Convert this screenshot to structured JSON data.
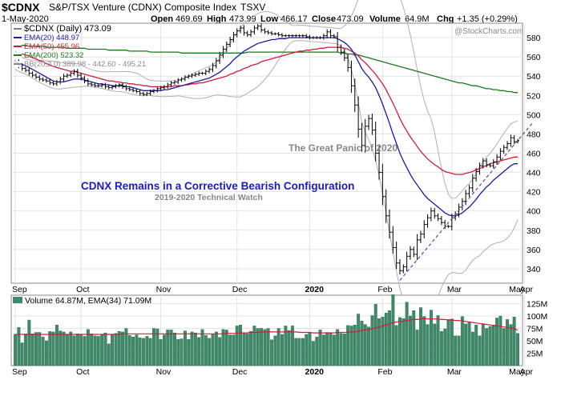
{
  "header": {
    "symbol": "$CDNX",
    "name": "S&P/TSX Venture (CDNX) Composite Index",
    "exchange": "TSXV",
    "date": "1-May-2020",
    "open_label": "Open",
    "open": "469.69",
    "high_label": "High",
    "high": "473.99",
    "low_label": "Low",
    "low": "466.17",
    "close_label": "Close",
    "close": "473.09",
    "volume_label": "Volume",
    "volume": "64.9M",
    "chg_label": "Chg",
    "chg": "+1.35 (+0.29%)",
    "watermark": "@StockCharts.com"
  },
  "legend": [
    {
      "text": "$CDNX (Daily) 473.09",
      "color": "#000000"
    },
    {
      "text": "EMA(20) 448.97",
      "color": "#1a1aa6"
    },
    {
      "text": "EMA(50) 455.96",
      "color": "#d41a3a"
    },
    {
      "text": "EMA(200) 523.32",
      "color": "#1a7a1a"
    },
    {
      "text": "BB(20,2.0) 389.98 - 442.60 - 495.21",
      "color": "#8a8a8a"
    }
  ],
  "annotations": {
    "panic": "The Great Panic of 2020",
    "title": "CDNX Remains in a Corrective Bearish Configuration",
    "subtitle": "2019-2020 Technical Watch"
  },
  "volume_legend": "Volume 64.87M, EMA(34) 71.09M",
  "colors": {
    "ema20": "#1a1aa6",
    "ema50": "#d41a3a",
    "ema200": "#1a7a1a",
    "bb": "#b0b0b0",
    "price": "#000000",
    "volume": "#3f8a6a",
    "vol_ema": "#d41a3a",
    "trend": "#7a3a9a",
    "title": "#1a1acc"
  },
  "chart_data": [
    {
      "type": "line",
      "title": "$CDNX",
      "price_ticks": [
        340,
        360,
        380,
        400,
        420,
        440,
        460,
        480,
        500,
        520,
        540,
        560,
        580
      ],
      "ylim": [
        325,
        595
      ],
      "x_labels": [
        "Sep",
        "Oct",
        "Nov",
        "Dec",
        "2020",
        "Feb",
        "Mar",
        "Apr",
        "May"
      ],
      "x_label_index": [
        0,
        19,
        42,
        64,
        85,
        106,
        126,
        147,
        168
      ],
      "series": [
        {
          "name": "$CDNX (Daily)",
          "values": [
            555,
            551,
            548,
            546,
            543,
            541,
            539,
            537,
            536,
            535,
            533,
            532,
            534,
            537,
            540,
            541,
            543,
            545,
            541,
            538,
            535,
            532,
            531,
            530,
            530,
            531,
            529,
            528,
            529,
            530,
            531,
            529,
            527,
            526,
            525,
            524,
            522,
            521,
            522,
            524,
            525,
            527,
            528,
            529,
            531,
            533,
            534,
            536,
            537,
            539,
            540,
            541,
            542,
            543,
            543,
            545,
            547,
            551,
            556,
            562,
            568,
            573,
            578,
            583,
            587,
            590,
            585,
            583,
            586,
            590,
            592,
            588,
            586,
            585,
            584,
            584,
            583,
            582,
            582,
            582,
            582,
            582,
            582,
            582,
            581,
            580,
            580,
            580,
            580,
            582,
            586,
            582,
            581,
            570,
            565,
            559,
            549,
            530,
            510,
            485,
            468,
            488,
            496,
            484,
            460,
            440,
            415,
            395,
            378,
            362,
            346,
            338,
            342,
            353,
            360,
            355,
            370,
            376,
            386,
            393,
            400,
            395,
            392,
            388,
            384,
            384,
            393,
            397,
            404,
            410,
            418,
            424,
            434,
            441,
            447,
            452,
            448,
            447,
            451,
            456,
            462,
            466,
            470,
            476,
            472,
            473
          ]
        },
        {
          "name": "EMA(20)",
          "values": [
            555,
            553,
            552,
            551,
            549,
            547,
            545,
            543,
            541,
            539,
            537,
            535,
            534,
            534,
            534,
            535,
            536,
            537,
            537,
            537,
            536,
            535,
            534,
            533,
            532,
            532,
            531,
            531,
            530,
            530,
            530,
            530,
            529,
            529,
            528,
            527,
            526,
            525,
            525,
            525,
            525,
            525,
            525,
            526,
            526,
            527,
            528,
            529,
            530,
            531,
            532,
            533,
            534,
            535,
            536,
            537,
            538,
            540,
            542,
            544,
            547,
            550,
            553,
            557,
            560,
            563,
            566,
            568,
            570,
            572,
            574,
            575,
            576,
            577,
            578,
            578,
            579,
            579,
            579,
            580,
            580,
            580,
            580,
            580,
            580,
            580,
            580,
            580,
            580,
            580,
            580,
            580,
            580,
            579,
            577,
            575,
            572,
            568,
            562,
            555,
            548,
            543,
            539,
            534,
            528,
            520,
            511,
            501,
            491,
            480,
            470,
            460,
            452,
            445,
            438,
            432,
            427,
            422,
            417,
            413,
            410,
            407,
            404,
            401,
            398,
            396,
            395,
            395,
            396,
            398,
            401,
            404,
            408,
            412,
            417,
            421,
            425,
            428,
            432,
            435,
            438,
            441,
            444,
            447,
            449,
            449
          ]
        },
        {
          "name": "EMA(50)",
          "values": [
            565,
            564,
            563,
            562,
            561,
            559,
            558,
            556,
            555,
            553,
            552,
            550,
            549,
            548,
            547,
            546,
            545,
            545,
            544,
            543,
            542,
            541,
            540,
            539,
            538,
            537,
            536,
            535,
            535,
            534,
            534,
            533,
            533,
            532,
            532,
            531,
            531,
            530,
            530,
            529,
            529,
            529,
            529,
            529,
            529,
            529,
            530,
            530,
            530,
            531,
            531,
            532,
            532,
            533,
            533,
            534,
            535,
            536,
            537,
            538,
            539,
            540,
            542,
            543,
            545,
            546,
            548,
            549,
            551,
            552,
            553,
            555,
            556,
            557,
            558,
            559,
            560,
            561,
            562,
            563,
            564,
            565,
            566,
            566,
            567,
            567,
            568,
            568,
            569,
            569,
            570,
            570,
            570,
            570,
            570,
            569,
            568,
            566,
            564,
            561,
            557,
            554,
            550,
            546,
            542,
            537,
            532,
            526,
            519,
            512,
            504,
            496,
            489,
            483,
            477,
            472,
            467,
            462,
            458,
            454,
            451,
            448,
            446,
            443,
            441,
            440,
            439,
            438,
            438,
            438,
            439,
            440,
            441,
            443,
            444,
            446,
            447,
            449,
            450,
            451,
            452,
            453,
            454,
            455,
            456,
            456
          ]
        },
        {
          "name": "EMA(200)",
          "values": [
            572,
            572,
            572,
            572,
            571,
            571,
            571,
            571,
            571,
            570,
            570,
            570,
            570,
            570,
            570,
            569,
            569,
            569,
            569,
            569,
            569,
            568,
            568,
            568,
            568,
            568,
            568,
            567,
            567,
            567,
            567,
            567,
            567,
            566,
            566,
            566,
            566,
            566,
            566,
            565,
            565,
            565,
            565,
            565,
            565,
            565,
            565,
            565,
            564,
            564,
            564,
            564,
            564,
            564,
            564,
            564,
            564,
            564,
            564,
            564,
            564,
            564,
            564,
            564,
            564,
            564,
            564,
            565,
            565,
            565,
            565,
            565,
            565,
            565,
            565,
            565,
            565,
            565,
            565,
            565,
            565,
            565,
            565,
            565,
            565,
            565,
            565,
            565,
            565,
            565,
            565,
            565,
            565,
            565,
            564,
            564,
            563,
            563,
            562,
            562,
            561,
            560,
            559,
            558,
            557,
            556,
            555,
            554,
            553,
            552,
            551,
            550,
            549,
            548,
            547,
            546,
            545,
            544,
            543,
            542,
            541,
            540,
            539,
            538,
            537,
            536,
            535,
            534,
            533,
            533,
            532,
            531,
            530,
            530,
            529,
            528,
            527,
            527,
            526,
            526,
            525,
            525,
            524,
            524,
            523,
            523
          ]
        }
      ]
    },
    {
      "type": "bar",
      "title": "Volume",
      "volume_ticks_label": [
        "25M",
        "50M",
        "75M",
        "100M",
        "125M"
      ],
      "volume_ticks": [
        25,
        50,
        75,
        100,
        125
      ],
      "ylim": [
        0,
        142
      ],
      "series": [
        {
          "name": "Volume",
          "values": [
            63,
            77,
            46,
            64,
            92,
            64,
            67,
            67,
            58,
            50,
            69,
            68,
            82,
            70,
            68,
            63,
            68,
            60,
            64,
            62,
            59,
            73,
            64,
            60,
            59,
            62,
            66,
            44,
            63,
            65,
            69,
            68,
            75,
            61,
            58,
            62,
            56,
            55,
            59,
            55,
            75,
            74,
            53,
            62,
            72,
            72,
            66,
            53,
            54,
            70,
            53,
            68,
            66,
            57,
            73,
            61,
            55,
            63,
            68,
            57,
            73,
            72,
            62,
            62,
            80,
            82,
            66,
            64,
            69,
            80,
            75,
            75,
            73,
            75,
            52,
            60,
            75,
            63,
            80,
            71,
            80,
            55,
            55,
            55,
            63,
            67,
            49,
            58,
            72,
            62,
            67,
            65,
            62,
            73,
            65,
            64,
            81,
            80,
            82,
            104,
            90,
            83,
            78,
            101,
            124,
            95,
            98,
            106,
            111,
            143,
            81,
            97,
            95,
            128,
            100,
            111,
            72,
            117,
            99,
            83,
            112,
            84,
            101,
            69,
            74,
            93,
            94,
            60,
            60,
            99,
            84,
            87,
            68,
            82,
            60,
            84,
            75,
            79,
            82,
            96,
            100,
            75,
            93,
            83,
            98,
            65
          ]
        },
        {
          "name": "EMA(34)",
          "values": [
            63,
            63,
            63,
            63,
            63,
            63,
            63,
            63,
            63,
            63,
            63,
            63,
            63,
            63,
            63,
            63,
            63,
            63,
            63,
            63,
            63,
            63,
            63,
            63,
            63,
            63,
            63,
            63,
            63,
            63,
            63,
            64,
            64,
            64,
            64,
            64,
            64,
            64,
            64,
            64,
            64,
            64,
            64,
            64,
            64,
            64,
            64,
            64,
            64,
            64,
            64,
            64,
            64,
            64,
            64,
            64,
            64,
            64,
            64,
            64,
            64,
            65,
            65,
            65,
            65,
            66,
            66,
            66,
            67,
            67,
            67,
            68,
            68,
            68,
            68,
            68,
            68,
            68,
            68,
            68,
            68,
            68,
            67,
            67,
            67,
            67,
            66,
            66,
            66,
            66,
            66,
            66,
            66,
            67,
            67,
            67,
            67,
            68,
            68,
            69,
            71,
            72,
            73,
            74,
            76,
            78,
            80,
            82,
            84,
            87,
            88,
            89,
            89,
            91,
            92,
            93,
            93,
            94,
            95,
            94,
            94,
            94,
            94,
            93,
            93,
            92,
            92,
            91,
            91,
            90,
            89,
            88,
            87,
            86,
            85,
            84,
            83,
            82,
            81,
            80,
            79,
            78,
            77,
            76,
            75,
            71
          ]
        }
      ]
    }
  ]
}
